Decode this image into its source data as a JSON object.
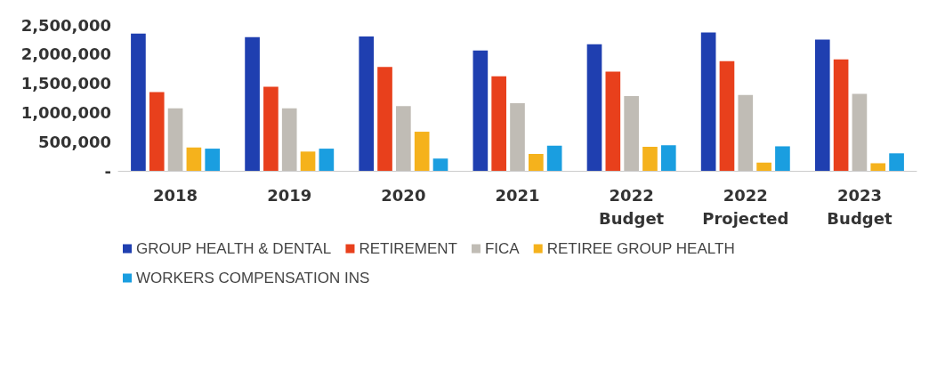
{
  "chart_data": {
    "type": "bar",
    "categories": [
      "2018",
      "2019",
      "2020",
      "2021",
      "2022\nBudget",
      "2022\nProjected",
      "2023\nBudget"
    ],
    "series": [
      {
        "name": "GROUP HEALTH & DENTAL",
        "color": "#1f3fb0",
        "values": [
          2350000,
          2290000,
          2300000,
          2060000,
          2170000,
          2370000,
          2250000
        ]
      },
      {
        "name": "RETIREMENT",
        "color": "#e8401c",
        "values": [
          1350000,
          1440000,
          1780000,
          1620000,
          1700000,
          1880000,
          1910000
        ]
      },
      {
        "name": "FICA",
        "color": "#c0bcb5",
        "values": [
          1070000,
          1070000,
          1110000,
          1160000,
          1280000,
          1300000,
          1320000
        ]
      },
      {
        "name": "RETIREE GROUP HEALTH",
        "color": "#f5b21c",
        "values": [
          400000,
          330000,
          670000,
          290000,
          410000,
          140000,
          130000
        ]
      },
      {
        "name": "WORKERS COMPENSATION INS",
        "color": "#1a9ee0",
        "values": [
          380000,
          380000,
          210000,
          430000,
          440000,
          420000,
          300000
        ]
      }
    ],
    "ylim": [
      0,
      2500000
    ],
    "yticks": [
      {
        "value": 0,
        "label": "-"
      },
      {
        "value": 500000,
        "label": "500,000"
      },
      {
        "value": 1000000,
        "label": "1,000,000"
      },
      {
        "value": 1500000,
        "label": "1,500,000"
      },
      {
        "value": 2000000,
        "label": "2,000,000"
      },
      {
        "value": 2500000,
        "label": "2,500,000"
      }
    ],
    "grid": false,
    "legend": "bottom"
  }
}
